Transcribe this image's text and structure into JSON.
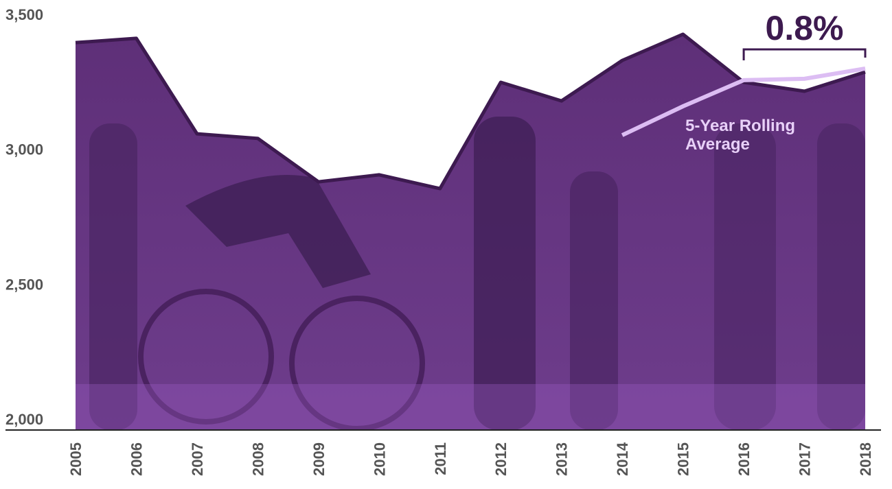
{
  "chart_data": {
    "type": "area",
    "categories": [
      "2005",
      "2006",
      "2007",
      "2008",
      "2009",
      "2010",
      "2011",
      "2012",
      "2013",
      "2014",
      "2015",
      "2016",
      "2017",
      "2018"
    ],
    "series": [
      {
        "color": "#5b2d75",
        "values": [
          3436,
          3452,
          3098,
          3081,
          2920,
          2946,
          2895,
          3289,
          3220,
          3370,
          3467,
          3289,
          3256,
          3327
        ]
      },
      {
        "name": "5-Year Rolling Average",
        "color": "#dcbdf3",
        "values": [
          null,
          null,
          null,
          null,
          null,
          null,
          null,
          null,
          null,
          3093,
          3200,
          3297,
          3302,
          3340
        ]
      }
    ],
    "ylim": [
      2000,
      3500
    ],
    "yticks": [
      {
        "value": 2000,
        "label": "2,000"
      },
      {
        "value": 2500,
        "label": "2,500"
      },
      {
        "value": 3000,
        "label": "3,000"
      },
      {
        "value": 3500,
        "label": "3,500"
      }
    ],
    "grid": true,
    "annotation": "0.8%"
  }
}
